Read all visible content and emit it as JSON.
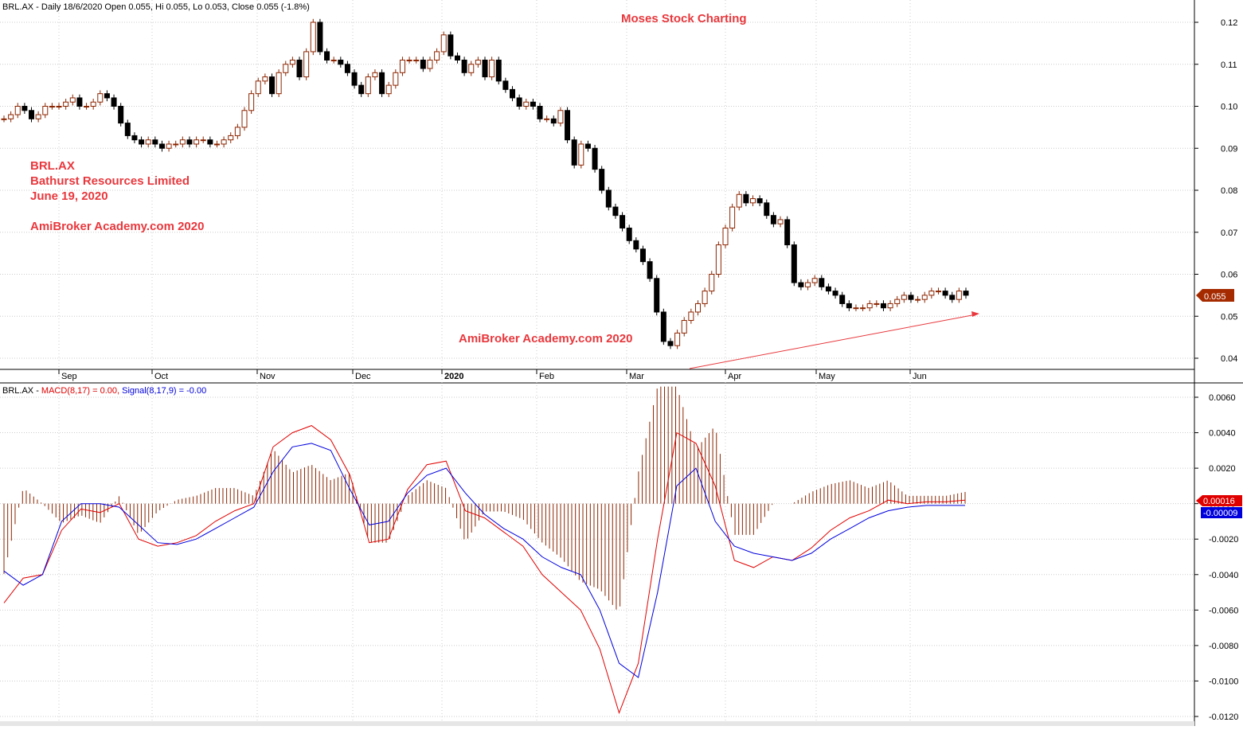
{
  "price_panel": {
    "header": "BRL.AX - Daily 18/6/2020 Open 0.055, Hi 0.055, Lo 0.053, Close 0.055 (-1.8%)",
    "watermark_top": "Moses Stock Charting",
    "annotation_lines": [
      "BRL.AX",
      "Bathurst Resources Limited",
      "June 19, 2020",
      "AmiBroker Academy.com  2020"
    ],
    "watermark_center": "AmiBroker Academy.com 2020",
    "last_price_label": "0.055"
  },
  "macd_panel": {
    "symbol": "BRL.AX",
    "macd_text": "MACD(8,17) = 0.00,",
    "signal_text": "Signal(8,17,9) = -0.00",
    "macd_badge": "0.00016",
    "signal_badge": "-0.00009"
  },
  "colors": {
    "up": "#8B2500",
    "down": "#000000",
    "macd": "#E00000",
    "signal": "#0000DD",
    "hist": "#8B2500",
    "accent_text": "#E8383D"
  },
  "chart_data": [
    {
      "type": "candlestick",
      "title": "BRL.AX - Daily",
      "xlabel": "",
      "ylabel": "",
      "ylim": [
        0.039,
        0.121
      ],
      "y_ticks": [
        "0.12",
        "0.11",
        "0.10",
        "0.09",
        "0.08",
        "0.07",
        "0.06",
        "0.05",
        "0.04"
      ],
      "x_ticks": [
        "Sep",
        "Oct",
        "Nov",
        "Dec",
        "2020",
        "Feb",
        "Mar",
        "Apr",
        "May",
        "Jun"
      ],
      "trendline": {
        "from": [
          0.039,
          0.039
        ],
        "to": [
          1.0,
          0.051
        ],
        "note": "rising support line from March low"
      },
      "close_path": [
        0.097,
        0.098,
        0.1,
        0.099,
        0.097,
        0.098,
        0.1,
        0.1,
        0.1,
        0.101,
        0.102,
        0.1,
        0.1,
        0.101,
        0.103,
        0.102,
        0.1,
        0.096,
        0.093,
        0.092,
        0.091,
        0.092,
        0.091,
        0.09,
        0.091,
        0.091,
        0.092,
        0.091,
        0.092,
        0.092,
        0.091,
        0.091,
        0.092,
        0.093,
        0.095,
        0.099,
        0.103,
        0.106,
        0.107,
        0.103,
        0.108,
        0.11,
        0.111,
        0.107,
        0.113,
        0.12,
        0.113,
        0.111,
        0.111,
        0.11,
        0.108,
        0.105,
        0.103,
        0.107,
        0.108,
        0.103,
        0.105,
        0.108,
        0.111,
        0.111,
        0.111,
        0.109,
        0.111,
        0.113,
        0.117,
        0.112,
        0.111,
        0.108,
        0.11,
        0.111,
        0.107,
        0.111,
        0.106,
        0.104,
        0.102,
        0.1,
        0.101,
        0.1,
        0.097,
        0.097,
        0.096,
        0.099,
        0.092,
        0.086,
        0.091,
        0.09,
        0.085,
        0.08,
        0.076,
        0.074,
        0.071,
        0.068,
        0.066,
        0.063,
        0.059,
        0.051,
        0.044,
        0.043,
        0.046,
        0.049,
        0.051,
        0.053,
        0.056,
        0.06,
        0.067,
        0.071,
        0.076,
        0.079,
        0.077,
        0.078,
        0.077,
        0.074,
        0.072,
        0.073,
        0.067,
        0.058,
        0.057,
        0.058,
        0.059,
        0.057,
        0.056,
        0.055,
        0.053,
        0.052,
        0.052,
        0.052,
        0.053,
        0.053,
        0.052,
        0.053,
        0.054,
        0.055,
        0.054,
        0.054,
        0.055,
        0.056,
        0.056,
        0.055,
        0.054,
        0.056,
        0.055
      ]
    },
    {
      "type": "line",
      "title": "MACD(8,17), Signal(8,17,9)",
      "ylim": [
        -0.0122,
        0.0062
      ],
      "y_ticks": [
        "0.0060",
        "0.0040",
        "0.0020",
        "0.0000",
        "-0.0020",
        "-0.0040",
        "-0.0060",
        "-0.0080",
        "-0.0100",
        "-0.0120"
      ],
      "series": [
        {
          "name": "MACD(8,17)",
          "x": [
            0,
            0.02,
            0.04,
            0.06,
            0.08,
            0.1,
            0.12,
            0.14,
            0.16,
            0.18,
            0.2,
            0.22,
            0.24,
            0.26,
            0.28,
            0.3,
            0.32,
            0.34,
            0.36,
            0.38,
            0.4,
            0.42,
            0.44,
            0.46,
            0.48,
            0.5,
            0.52,
            0.54,
            0.56,
            0.58,
            0.6,
            0.62,
            0.64,
            0.66,
            0.68,
            0.7,
            0.72,
            0.74,
            0.76,
            0.78,
            0.8,
            0.82,
            0.84,
            0.86,
            0.88,
            0.9,
            0.92,
            0.94,
            0.96,
            0.98,
            1.0
          ],
          "values": [
            -0.0056,
            -0.0042,
            -0.004,
            -0.0015,
            -0.0003,
            -0.0005,
            0.0,
            -0.002,
            -0.0024,
            -0.0022,
            -0.0018,
            -0.001,
            -0.0004,
            0.0,
            0.0032,
            0.004,
            0.0044,
            0.0036,
            0.0016,
            -0.0022,
            -0.002,
            0.0008,
            0.0022,
            0.0024,
            -0.0004,
            -0.0008,
            -0.0016,
            -0.0024,
            -0.004,
            -0.005,
            -0.006,
            -0.0082,
            -0.0118,
            -0.009,
            -0.002,
            0.004,
            0.0034,
            0.001,
            -0.0032,
            -0.0036,
            -0.003,
            -0.0032,
            -0.0025,
            -0.0015,
            -0.0008,
            -0.0004,
            0.0002,
            0.0,
            0.0001,
            0.0001,
            0.0002
          ]
        },
        {
          "name": "Signal(8,17,9)",
          "x": [
            0,
            0.02,
            0.04,
            0.06,
            0.08,
            0.1,
            0.12,
            0.14,
            0.16,
            0.18,
            0.2,
            0.22,
            0.24,
            0.26,
            0.28,
            0.3,
            0.32,
            0.34,
            0.36,
            0.38,
            0.4,
            0.42,
            0.44,
            0.46,
            0.48,
            0.5,
            0.52,
            0.54,
            0.56,
            0.58,
            0.6,
            0.62,
            0.64,
            0.66,
            0.68,
            0.7,
            0.72,
            0.74,
            0.76,
            0.78,
            0.8,
            0.82,
            0.84,
            0.86,
            0.88,
            0.9,
            0.92,
            0.94,
            0.96,
            0.98,
            1.0
          ],
          "values": [
            -0.0038,
            -0.0046,
            -0.004,
            -0.001,
            0.0,
            0.0,
            -0.0002,
            -0.0012,
            -0.0022,
            -0.0023,
            -0.002,
            -0.0014,
            -0.0008,
            -0.0002,
            0.0018,
            0.0032,
            0.0034,
            0.003,
            0.0008,
            -0.0012,
            -0.001,
            0.0006,
            0.0016,
            0.002,
            0.0006,
            -0.0006,
            -0.0014,
            -0.002,
            -0.003,
            -0.0036,
            -0.004,
            -0.006,
            -0.009,
            -0.0098,
            -0.005,
            0.001,
            0.002,
            -0.001,
            -0.0024,
            -0.0028,
            -0.003,
            -0.0032,
            -0.0028,
            -0.002,
            -0.0014,
            -0.0008,
            -0.0004,
            -0.0002,
            -0.0001,
            -0.0001,
            -0.0001
          ]
        }
      ],
      "histogram": "difference MACD - Signal drawn as thin vertical bars around zero"
    }
  ]
}
